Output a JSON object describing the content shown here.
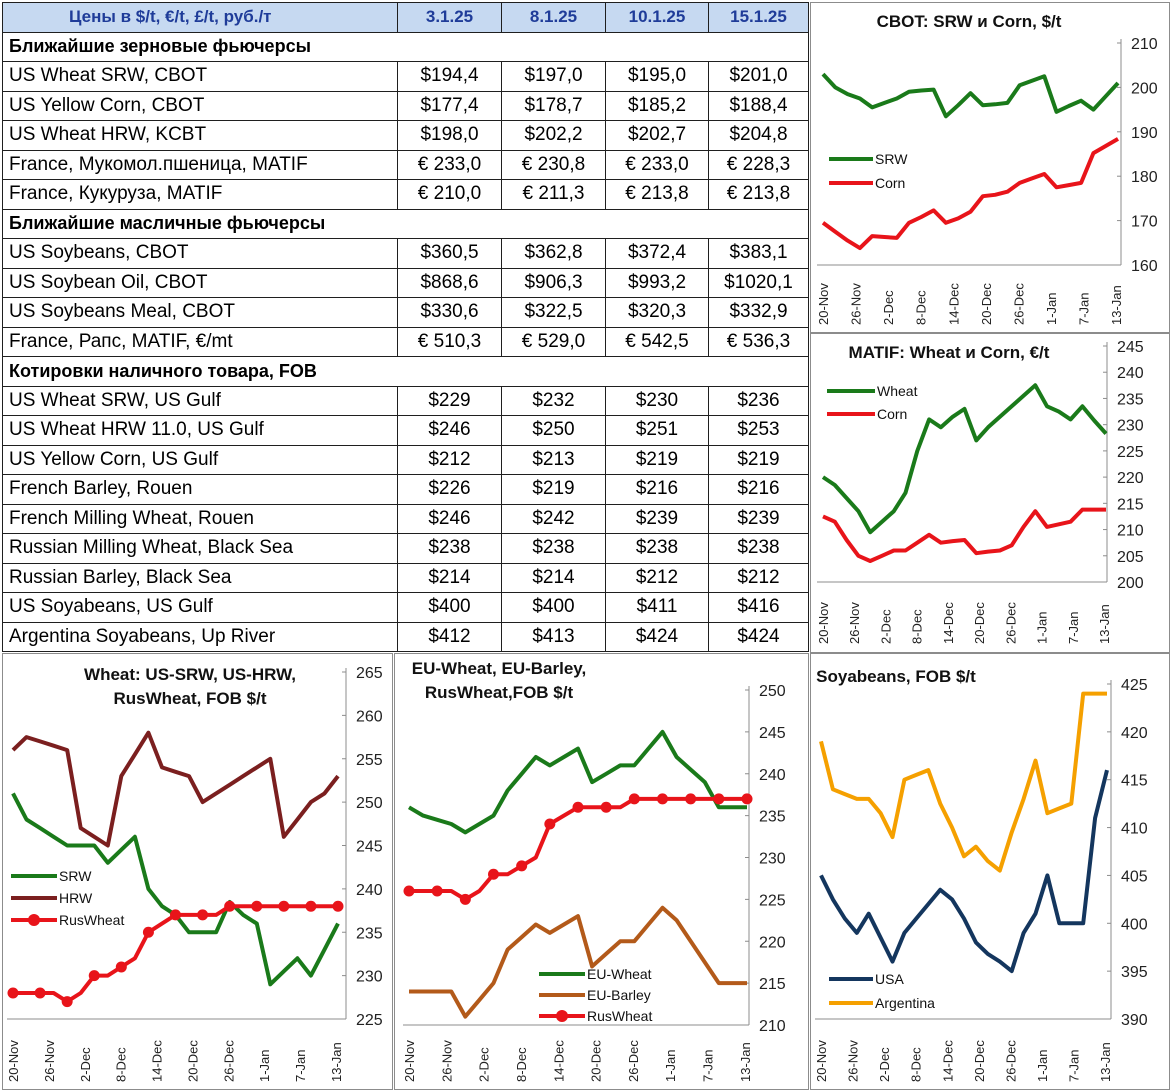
{
  "table": {
    "header": {
      "label": "Цены в  $/t, €/t, £/t, руб./т",
      "dates": [
        "3.1.25",
        "8.1.25",
        "10.1.25",
        "15.1.25"
      ]
    },
    "sections": [
      {
        "title": "Ближайшие зерновые фьючерсы",
        "rows": [
          {
            "name": "US Wheat SRW, CBOT",
            "values": [
              "$194,4",
              "$197,0",
              "$195,0",
              "$201,0"
            ]
          },
          {
            "name": "US Yellow Corn, CBOT",
            "values": [
              "$177,4",
              "$178,7",
              "$185,2",
              "$188,4"
            ]
          },
          {
            "name": "US Wheat HRW, KCBT",
            "values": [
              "$198,0",
              "$202,2",
              "$202,7",
              "$204,8"
            ]
          },
          {
            "name": "France, Мукомол.пшеница, MATIF",
            "values": [
              "€ 233,0",
              "€ 230,8",
              "€ 233,0",
              "€ 228,3"
            ]
          },
          {
            "name": "France, Кукуруза, MATIF",
            "values": [
              "€ 210,0",
              "€ 211,3",
              "€ 213,8",
              "€ 213,8"
            ]
          }
        ]
      },
      {
        "title": "Ближайшие масличные фьючерсы",
        "rows": [
          {
            "name": "US Soybeans, CBOT",
            "values": [
              "$360,5",
              "$362,8",
              "$372,4",
              "$383,1"
            ]
          },
          {
            "name": "US Soybean Oil, CBOT",
            "values": [
              "$868,6",
              "$906,3",
              "$993,2",
              "$1020,1"
            ]
          },
          {
            "name": "US Soybeans Meal, CBOT",
            "values": [
              "$330,6",
              "$322,5",
              "$320,3",
              "$332,9"
            ]
          },
          {
            "name": "France, Рапс, MATIF, €/mt",
            "values": [
              "€ 510,3",
              "€ 529,0",
              "€ 542,5",
              "€ 536,3"
            ]
          }
        ]
      },
      {
        "title": "Котировки наличного товара, FOB",
        "rows": [
          {
            "name": "US Wheat SRW, US Gulf",
            "values": [
              "$229",
              "$232",
              "$230",
              "$236"
            ]
          },
          {
            "name": "US Wheat HRW 11.0, US Gulf",
            "values": [
              "$246",
              "$250",
              "$251",
              "$253"
            ]
          },
          {
            "name": "US Yellow Corn, US Gulf",
            "values": [
              "$212",
              "$213",
              "$219",
              "$219"
            ]
          },
          {
            "name": "French Barley, Rouen",
            "values": [
              "$226",
              "$219",
              "$216",
              "$216"
            ]
          },
          {
            "name": "French Milling Wheat, Rouen",
            "values": [
              "$246",
              "$242",
              "$239",
              "$239"
            ]
          },
          {
            "name": "Russian Milling Wheat, Black Sea",
            "values": [
              "$238",
              "$238",
              "$238",
              "$238"
            ]
          },
          {
            "name": "Russian Barley, Black Sea",
            "values": [
              "$214",
              "$214",
              "$212",
              "$212"
            ]
          },
          {
            "name": "US Soyabeans, US Gulf",
            "values": [
              "$400",
              "$400",
              "$411",
              "$416"
            ]
          },
          {
            "name": "Argentina Soyabeans, Up River",
            "values": [
              "$412",
              "$413",
              "$424",
              "$424"
            ]
          }
        ]
      }
    ]
  },
  "chart_data": [
    {
      "id": "cbot",
      "type": "line",
      "title": [
        "CBOT: SRW и Corn, $/t"
      ],
      "ylim": [
        160,
        210
      ],
      "yticks": [
        160,
        170,
        180,
        190,
        200,
        210
      ],
      "x_labels": [
        "20-Nov",
        "26-Nov",
        "2-Dec",
        "8-Dec",
        "14-Dec",
        "20-Dec",
        "26-Dec",
        "1-Jan",
        "7-Jan",
        "13-Jan"
      ],
      "series": [
        {
          "name": "SRW",
          "color": "#1a7a1a",
          "marker": false,
          "values": [
            203,
            200,
            198.5,
            197.5,
            195.5,
            196.5,
            197.5,
            199,
            199.3,
            199.5,
            193.5,
            196,
            198.7,
            196,
            196.2,
            196.5,
            200.5,
            201.5,
            202.5,
            194.5,
            195.8,
            197,
            195,
            198,
            201
          ]
        },
        {
          "name": "Corn",
          "color": "#e8141a",
          "marker": false,
          "values": [
            169.5,
            167.5,
            165.5,
            163.8,
            166.5,
            166.3,
            166.1,
            169.5,
            170.8,
            172.3,
            169.5,
            170.5,
            172,
            175.5,
            175.8,
            176.5,
            178.5,
            179.5,
            180.5,
            177.5,
            178,
            178.5,
            185.2,
            186.8,
            188.4
          ]
        }
      ]
    },
    {
      "id": "matif",
      "type": "line",
      "title": [
        "MATIF: Wheat и Corn, €/t"
      ],
      "ylim": [
        200,
        245
      ],
      "yticks": [
        200,
        205,
        210,
        215,
        220,
        225,
        230,
        235,
        240,
        245
      ],
      "x_labels": [
        "20-Nov",
        "26-Nov",
        "2-Dec",
        "8-Dec",
        "14-Dec",
        "20-Dec",
        "26-Dec",
        "1-Jan",
        "7-Jan",
        "13-Jan"
      ],
      "series": [
        {
          "name": "Wheat",
          "color": "#1a7a1a",
          "marker": false,
          "values": [
            220,
            218.5,
            216,
            213.5,
            209.5,
            211.5,
            213.5,
            217,
            225,
            231,
            229.5,
            231.5,
            233,
            227,
            229.5,
            231.5,
            233.5,
            235.5,
            237.5,
            233.5,
            232.5,
            231,
            233.5,
            230.8,
            228.3
          ]
        },
        {
          "name": "Corn",
          "color": "#e8141a",
          "marker": false,
          "values": [
            212.5,
            211.5,
            208,
            205,
            204,
            205,
            206,
            206,
            207.5,
            209,
            207.5,
            207.8,
            208,
            205.5,
            205.8,
            206,
            207,
            210.5,
            213.5,
            210.5,
            211,
            211.5,
            213.8,
            213.8,
            213.8
          ]
        }
      ]
    },
    {
      "id": "wheat-fob",
      "type": "line",
      "title": [
        "Wheat: US-SRW, US-HRW,",
        "RusWheat, FOB $/t"
      ],
      "ylim": [
        225,
        265
      ],
      "yticks": [
        225,
        230,
        235,
        240,
        245,
        250,
        255,
        260,
        265
      ],
      "x_labels": [
        "20-Nov",
        "26-Nov",
        "2-Dec",
        "8-Dec",
        "14-Dec",
        "20-Dec",
        "26-Dec",
        "1-Jan",
        "7-Jan",
        "13-Jan"
      ],
      "series": [
        {
          "name": "SRW",
          "color": "#1a7a1a",
          "marker": false,
          "values": [
            251,
            248,
            247,
            246,
            245,
            245,
            245,
            243,
            244.5,
            246,
            240,
            238,
            237,
            235,
            235,
            235,
            238.5,
            237,
            236,
            229,
            230.5,
            232,
            230,
            233,
            236
          ]
        },
        {
          "name": "HRW",
          "color": "#7b1f1f",
          "marker": false,
          "values": [
            256,
            257.5,
            257,
            256.5,
            256,
            247,
            246,
            245,
            253,
            255.5,
            258,
            254,
            253.5,
            253,
            250,
            251,
            252,
            253,
            254,
            255,
            246,
            248,
            250,
            251,
            253
          ]
        },
        {
          "name": "RusWheat",
          "color": "#e8141a",
          "marker": true,
          "values": [
            228,
            228,
            228,
            228,
            227,
            228,
            230,
            230,
            231,
            232,
            235,
            236,
            237,
            237,
            237,
            237,
            238,
            238,
            238,
            238,
            238,
            238,
            238,
            238,
            238
          ]
        }
      ]
    },
    {
      "id": "eu-fob",
      "type": "line",
      "title": [
        "EU-Wheat, EU-Barley,",
        "RusWheat,FOB $/t"
      ],
      "ylim": [
        210,
        250
      ],
      "yticks": [
        210,
        215,
        220,
        225,
        230,
        235,
        240,
        245,
        250
      ],
      "x_labels": [
        "20-Nov",
        "26-Nov",
        "2-Dec",
        "8-Dec",
        "14-Dec",
        "20-Dec",
        "26-Dec",
        "1-Jan",
        "7-Jan",
        "13-Jan"
      ],
      "series": [
        {
          "name": "EU-Wheat",
          "color": "#1a7a1a",
          "marker": false,
          "values": [
            236,
            235,
            234.5,
            234,
            233,
            234,
            235,
            238,
            240,
            242,
            241,
            242,
            243,
            239,
            240,
            241,
            241,
            243,
            245,
            242,
            240.5,
            239,
            236,
            236,
            236
          ]
        },
        {
          "name": "EU-Barley",
          "color": "#b35a1a",
          "marker": false,
          "values": [
            214,
            214,
            214,
            214,
            211,
            213,
            215,
            219,
            220.5,
            222,
            221,
            222,
            223,
            217,
            218.5,
            220,
            220,
            222,
            224,
            222.5,
            220,
            217.5,
            215,
            215,
            215
          ]
        },
        {
          "name": "RusWheat",
          "color": "#e8141a",
          "marker": true,
          "values": [
            226,
            226,
            226,
            226,
            225,
            226,
            228,
            228,
            229,
            230,
            234,
            235,
            236,
            236,
            236,
            236,
            237,
            237,
            237,
            237,
            237,
            237,
            237,
            237,
            237
          ]
        }
      ]
    },
    {
      "id": "soy-fob",
      "type": "line",
      "title": [
        "Soyabeans, FOB $/t"
      ],
      "ylim": [
        390,
        425
      ],
      "yticks": [
        390,
        395,
        400,
        405,
        410,
        415,
        420,
        425
      ],
      "x_labels": [
        "20-Nov",
        "26-Nov",
        "2-Dec",
        "8-Dec",
        "14-Dec",
        "20-Dec",
        "26-Dec",
        "1-Jan",
        "7-Jan",
        "13-Jan"
      ],
      "series": [
        {
          "name": "USA",
          "color": "#14365e",
          "marker": false,
          "values": [
            405,
            402.5,
            400.5,
            399,
            401,
            398.5,
            396,
            399,
            400.5,
            402,
            403.5,
            402.5,
            400.5,
            398,
            396.8,
            396,
            395,
            399,
            401,
            405,
            400,
            400,
            400,
            411,
            416
          ]
        },
        {
          "name": "Argentina",
          "color": "#f5a000",
          "marker": false,
          "values": [
            419,
            414,
            413.5,
            413,
            413,
            411.5,
            409,
            415,
            415.5,
            416,
            412.5,
            410,
            407,
            408,
            406.5,
            405.5,
            409.5,
            413,
            417,
            411.5,
            412,
            412.5,
            424,
            424,
            424
          ]
        }
      ]
    }
  ]
}
